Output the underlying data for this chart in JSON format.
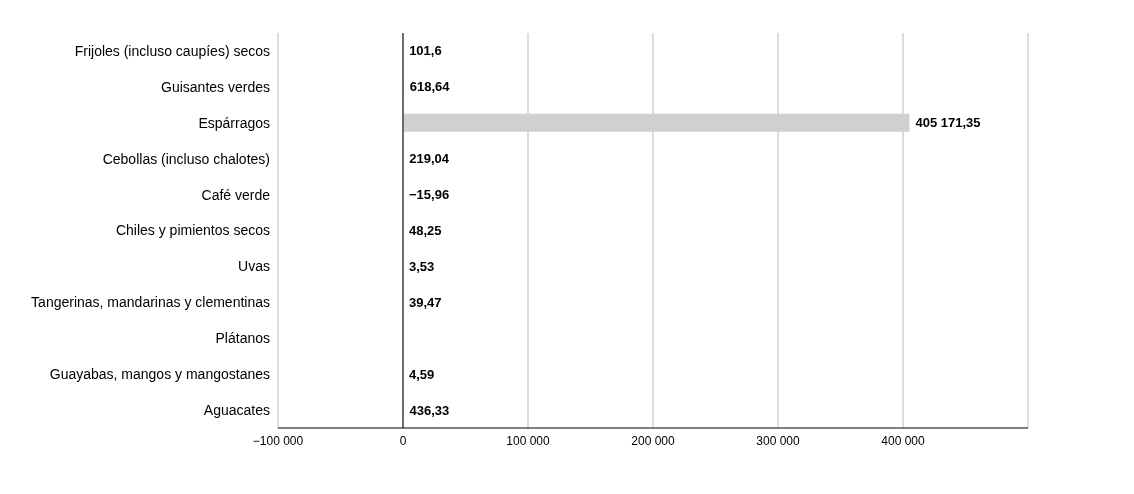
{
  "chart_data": {
    "type": "bar",
    "orientation": "horizontal",
    "categories": [
      "Frijoles (incluso caupíes) secos",
      "Guisantes verdes",
      "Espárragos",
      "Cebollas (incluso chalotes)",
      "Café verde",
      "Chiles y pimientos secos",
      "Uvas",
      "Tangerinas, mandarinas y clementinas",
      "Plátanos",
      "Guayabas, mangos y mangostanes",
      "Aguacates"
    ],
    "values": [
      101.6,
      618.64,
      405171.35,
      219.04,
      -15.96,
      48.25,
      3.53,
      39.47,
      null,
      4.59,
      436.33
    ],
    "value_labels": [
      "101,6",
      "618,64",
      "405 171,35",
      "219,04",
      "−15,96",
      "48,25",
      "3,53",
      "39,47",
      null,
      "4,59",
      "436,33"
    ],
    "color": "#d0d0d0",
    "xlim": [
      -100000,
      500000
    ],
    "xticks": [
      {
        "value": -100000,
        "label": "−100 000"
      },
      0,
      {
        "value": 100000,
        "label": "100 000"
      },
      {
        "value": 200000,
        "label": "200 000"
      },
      {
        "value": 300000,
        "label": "300 000"
      },
      {
        "value": 400000,
        "label": "400 000"
      }
    ],
    "grid": "x"
  }
}
